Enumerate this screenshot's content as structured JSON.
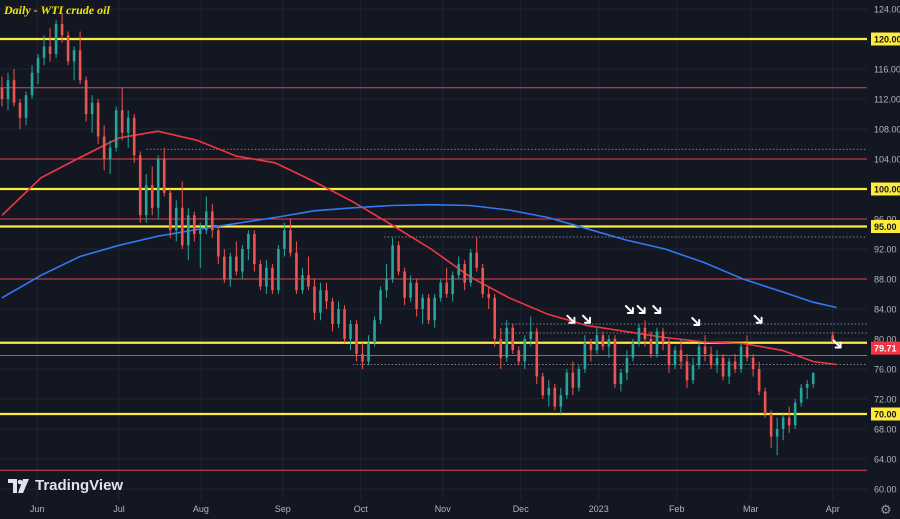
{
  "chart_data": {
    "type": "candlestick",
    "title": "Daily - WTI crude oil",
    "watermark": "TradingView",
    "ylim": [
      59,
      125
    ],
    "y_ticks": [
      "124.00",
      "120.00",
      "116.00",
      "112.00",
      "108.00",
      "104.00",
      "100.00",
      "96.00",
      "92.00",
      "88.00",
      "84.00",
      "80.00",
      "76.00",
      "72.00",
      "68.00",
      "64.00",
      "60.00"
    ],
    "x_ticks": [
      "Jun",
      "Jul",
      "Aug",
      "Sep",
      "Oct",
      "Nov",
      "Dec",
      "2023",
      "Feb",
      "Mar",
      "Apr"
    ],
    "x_domain": [
      0,
      222
    ],
    "x_tick_positions": [
      9,
      30,
      51,
      72,
      92,
      113,
      133,
      153,
      173,
      192,
      213
    ],
    "price_label": {
      "value": 79.71,
      "text": "79.71",
      "color": "#f23645"
    },
    "horizontal_levels": [
      {
        "value": 120,
        "label": "120.00",
        "color": "#ffeb3b",
        "style": "yellow"
      },
      {
        "value": 100,
        "label": "100.00",
        "color": "#ffeb3b",
        "style": "yellow"
      },
      {
        "value": 95,
        "label": "95.00",
        "color": "#ffeb3b",
        "style": "yellow"
      },
      {
        "value": 79.5,
        "label": "",
        "color": "#ffeb3b",
        "style": "yellow"
      },
      {
        "value": 70,
        "label": "70.00",
        "color": "#ffeb3b",
        "style": "yellow"
      },
      {
        "value": 113.5,
        "label": "",
        "color": "#e0464f",
        "style": "red"
      },
      {
        "value": 104,
        "label": "",
        "color": "#e0464f",
        "style": "red"
      },
      {
        "value": 96,
        "label": "",
        "color": "#e0464f",
        "style": "red"
      },
      {
        "value": 88,
        "label": "",
        "color": "#e0464f",
        "style": "red"
      },
      {
        "value": 77.8,
        "label": "",
        "color": "#e0464f",
        "style": "red"
      },
      {
        "value": 62.5,
        "label": "",
        "color": "#e0464f",
        "style": "red"
      }
    ],
    "dotted_levels": [
      {
        "value": 105.3,
        "x_from": 37
      },
      {
        "value": 93.6,
        "x_from": 98
      },
      {
        "value": 82.0,
        "x_from": 128
      },
      {
        "value": 80.8,
        "x_from": 128
      },
      {
        "value": 76.6,
        "x_from": 90
      }
    ],
    "series": [
      {
        "name": "",
        "color": "#f23645",
        "x": [
          0,
          10,
          20,
          30,
          40,
          50,
          60,
          70,
          80,
          90,
          100,
          110,
          120,
          130,
          140,
          150,
          160,
          170,
          180,
          190,
          200,
          208,
          214
        ],
        "values": [
          96.5,
          101.5,
          104.2,
          106.8,
          107.7,
          106.5,
          104.4,
          103.5,
          101.0,
          98.3,
          95.2,
          92.0,
          88.3,
          85.5,
          83.3,
          81.8,
          81.0,
          80.2,
          79.6,
          79.4,
          78.5,
          77.0,
          76.6
        ]
      },
      {
        "name": "",
        "color": "#3179f5",
        "x": [
          0,
          10,
          20,
          30,
          40,
          50,
          60,
          70,
          80,
          90,
          100,
          110,
          120,
          130,
          140,
          150,
          160,
          170,
          180,
          190,
          200,
          208,
          214
        ],
        "values": [
          85.5,
          88.5,
          91.0,
          92.5,
          93.7,
          94.6,
          95.4,
          96.2,
          97.1,
          97.5,
          97.8,
          97.9,
          97.8,
          97.2,
          96.2,
          94.7,
          93.2,
          92.0,
          90.2,
          88.0,
          86.3,
          84.9,
          84.2
        ]
      }
    ],
    "candles_note": "approximate daily OHLC, [open, high, low, close]",
    "candles": [
      [
        113.5,
        115.0,
        111.0,
        112.0
      ],
      [
        112.0,
        115.5,
        110.5,
        114.5
      ],
      [
        114.5,
        116.0,
        111.0,
        111.5
      ],
      [
        111.5,
        112.0,
        108.0,
        109.5
      ],
      [
        109.5,
        113.0,
        108.5,
        112.5
      ],
      [
        112.5,
        116.5,
        112.0,
        115.5
      ],
      [
        115.5,
        118.0,
        114.0,
        117.5
      ],
      [
        117.5,
        120.5,
        116.5,
        119.0
      ],
      [
        119.0,
        121.5,
        117.0,
        118.0
      ],
      [
        118.0,
        122.5,
        117.5,
        122.0
      ],
      [
        122.0,
        123.5,
        119.5,
        120.5
      ],
      [
        120.5,
        121.0,
        116.5,
        117.0
      ],
      [
        117.0,
        119.0,
        114.5,
        118.5
      ],
      [
        118.5,
        121.0,
        114.0,
        114.5
      ],
      [
        114.5,
        115.0,
        109.0,
        110.0
      ],
      [
        110.0,
        112.5,
        107.5,
        111.5
      ],
      [
        111.5,
        112.0,
        106.0,
        107.0
      ],
      [
        107.0,
        108.5,
        102.5,
        104.0
      ],
      [
        104.0,
        106.5,
        102.0,
        105.5
      ],
      [
        105.5,
        111.0,
        105.0,
        110.5
      ],
      [
        110.5,
        113.5,
        106.5,
        107.5
      ],
      [
        107.5,
        110.5,
        105.5,
        109.5
      ],
      [
        109.5,
        110.0,
        103.5,
        104.5
      ],
      [
        104.5,
        105.0,
        95.5,
        96.5
      ],
      [
        96.5,
        102.0,
        95.5,
        100.5
      ],
      [
        100.5,
        103.0,
        96.5,
        97.5
      ],
      [
        97.5,
        104.5,
        96.0,
        104.0
      ],
      [
        104.0,
        105.5,
        99.0,
        99.5
      ],
      [
        99.5,
        100.0,
        93.5,
        94.5
      ],
      [
        94.5,
        98.5,
        93.0,
        97.5
      ],
      [
        97.5,
        101.0,
        92.0,
        92.5
      ],
      [
        92.5,
        97.5,
        90.5,
        96.5
      ],
      [
        96.5,
        97.0,
        93.0,
        94.0
      ],
      [
        94.0,
        95.5,
        89.5,
        94.5
      ],
      [
        94.5,
        99.0,
        94.0,
        97.0
      ],
      [
        97.0,
        98.0,
        93.5,
        94.5
      ],
      [
        94.5,
        95.0,
        90.0,
        91.0
      ],
      [
        91.0,
        92.0,
        87.5,
        88.0
      ],
      [
        88.0,
        91.5,
        87.0,
        91.0
      ],
      [
        91.0,
        93.0,
        88.5,
        89.0
      ],
      [
        89.0,
        92.5,
        88.0,
        92.0
      ],
      [
        92.0,
        94.5,
        90.5,
        94.0
      ],
      [
        94.0,
        94.5,
        89.0,
        90.0
      ],
      [
        90.0,
        90.5,
        86.5,
        87.0
      ],
      [
        87.0,
        90.5,
        86.0,
        89.5
      ],
      [
        89.5,
        90.0,
        86.0,
        86.5
      ],
      [
        86.5,
        92.5,
        86.0,
        92.0
      ],
      [
        92.0,
        95.5,
        91.0,
        94.5
      ],
      [
        94.5,
        96.0,
        91.0,
        91.5
      ],
      [
        91.5,
        93.0,
        86.0,
        86.5
      ],
      [
        86.5,
        89.5,
        86.0,
        88.5
      ],
      [
        88.5,
        91.0,
        86.5,
        87.0
      ],
      [
        87.0,
        88.0,
        82.5,
        83.5
      ],
      [
        83.5,
        87.5,
        82.5,
        86.5
      ],
      [
        86.5,
        87.5,
        84.0,
        85.0
      ],
      [
        85.0,
        85.5,
        81.0,
        82.0
      ],
      [
        82.0,
        85.0,
        81.5,
        84.0
      ],
      [
        84.0,
        84.5,
        79.5,
        80.0
      ],
      [
        80.0,
        82.5,
        78.5,
        82.0
      ],
      [
        82.0,
        82.5,
        77.0,
        78.0
      ],
      [
        78.0,
        79.5,
        76.0,
        77.0
      ],
      [
        77.0,
        80.5,
        76.5,
        79.5
      ],
      [
        79.5,
        83.0,
        79.0,
        82.5
      ],
      [
        82.5,
        87.0,
        82.0,
        86.5
      ],
      [
        86.5,
        90.0,
        85.5,
        88.0
      ],
      [
        88.0,
        93.5,
        87.5,
        92.5
      ],
      [
        92.5,
        93.0,
        88.5,
        89.0
      ],
      [
        89.0,
        89.5,
        84.5,
        85.5
      ],
      [
        85.5,
        88.5,
        85.0,
        87.5
      ],
      [
        87.5,
        88.0,
        83.0,
        84.0
      ],
      [
        84.0,
        86.0,
        82.0,
        85.5
      ],
      [
        85.5,
        86.0,
        82.0,
        82.5
      ],
      [
        82.5,
        86.0,
        81.5,
        85.5
      ],
      [
        85.5,
        88.0,
        85.0,
        87.5
      ],
      [
        87.5,
        89.5,
        85.5,
        86.0
      ],
      [
        86.0,
        89.0,
        85.0,
        88.5
      ],
      [
        88.5,
        91.0,
        88.0,
        90.0
      ],
      [
        90.0,
        90.5,
        86.5,
        87.5
      ],
      [
        87.5,
        92.0,
        87.0,
        91.5
      ],
      [
        91.5,
        93.5,
        89.0,
        89.5
      ],
      [
        89.5,
        90.0,
        85.5,
        86.0
      ],
      [
        86.0,
        87.0,
        84.0,
        85.5
      ],
      [
        85.5,
        86.0,
        79.0,
        80.0
      ],
      [
        80.0,
        81.5,
        76.0,
        77.5
      ],
      [
        77.5,
        82.5,
        77.0,
        81.5
      ],
      [
        81.5,
        82.0,
        78.0,
        78.5
      ],
      [
        78.5,
        79.0,
        76.5,
        77.0
      ],
      [
        77.0,
        80.5,
        76.0,
        80.0
      ],
      [
        80.0,
        83.0,
        79.0,
        81.0
      ],
      [
        81.0,
        81.5,
        74.0,
        75.0
      ],
      [
        75.0,
        75.5,
        72.0,
        72.5
      ],
      [
        72.5,
        74.5,
        71.0,
        73.5
      ],
      [
        73.5,
        74.0,
        70.5,
        71.0
      ],
      [
        71.0,
        73.5,
        70.0,
        72.5
      ],
      [
        72.5,
        76.0,
        72.0,
        75.5
      ],
      [
        75.5,
        77.0,
        72.5,
        73.5
      ],
      [
        73.5,
        76.5,
        73.0,
        76.0
      ],
      [
        76.0,
        80.5,
        75.5,
        79.5
      ],
      [
        79.5,
        80.0,
        77.0,
        78.5
      ],
      [
        78.5,
        81.5,
        78.0,
        80.5
      ],
      [
        80.5,
        81.0,
        78.5,
        79.0
      ],
      [
        79.0,
        80.5,
        77.5,
        80.0
      ],
      [
        80.0,
        80.5,
        73.5,
        74.0
      ],
      [
        74.0,
        76.0,
        73.0,
        75.5
      ],
      [
        75.5,
        78.5,
        74.5,
        77.5
      ],
      [
        77.5,
        80.0,
        77.0,
        79.5
      ],
      [
        79.5,
        82.0,
        79.0,
        81.5
      ],
      [
        81.5,
        82.5,
        79.0,
        80.0
      ],
      [
        80.0,
        81.0,
        77.5,
        78.0
      ],
      [
        78.0,
        81.5,
        77.5,
        81.0
      ],
      [
        81.0,
        81.5,
        78.5,
        79.5
      ],
      [
        79.5,
        80.0,
        75.5,
        76.5
      ],
      [
        76.5,
        79.0,
        76.0,
        78.5
      ],
      [
        78.5,
        80.0,
        76.0,
        77.0
      ],
      [
        77.0,
        78.0,
        73.5,
        74.5
      ],
      [
        74.5,
        77.5,
        74.0,
        76.5
      ],
      [
        76.5,
        79.5,
        76.0,
        79.0
      ],
      [
        79.0,
        80.5,
        77.0,
        78.0
      ],
      [
        78.0,
        79.0,
        76.0,
        76.5
      ],
      [
        76.5,
        78.5,
        75.5,
        77.5
      ],
      [
        77.5,
        78.0,
        74.5,
        75.0
      ],
      [
        75.0,
        77.5,
        74.0,
        77.0
      ],
      [
        77.0,
        78.0,
        75.5,
        76.0
      ],
      [
        76.0,
        79.5,
        75.5,
        79.0
      ],
      [
        79.0,
        80.5,
        77.0,
        77.5
      ],
      [
        77.5,
        78.0,
        75.0,
        76.0
      ],
      [
        76.0,
        77.0,
        72.5,
        73.0
      ],
      [
        73.0,
        73.5,
        69.5,
        70.0
      ],
      [
        70.0,
        70.5,
        65.5,
        67.0
      ],
      [
        67.0,
        69.5,
        64.5,
        68.0
      ],
      [
        68.0,
        70.0,
        66.5,
        69.5
      ],
      [
        69.5,
        71.0,
        67.5,
        68.5
      ],
      [
        68.5,
        72.0,
        68.0,
        71.5
      ],
      [
        71.5,
        74.0,
        71.0,
        73.5
      ],
      [
        73.5,
        74.5,
        72.0,
        74.0
      ],
      [
        74.0,
        75.5,
        73.5,
        75.5
      ],
      [
        80.5,
        81.0,
        79.5,
        79.71
      ]
    ],
    "candle_x_start": 0,
    "candle_x_end": 208,
    "price_last_x": 213
  }
}
